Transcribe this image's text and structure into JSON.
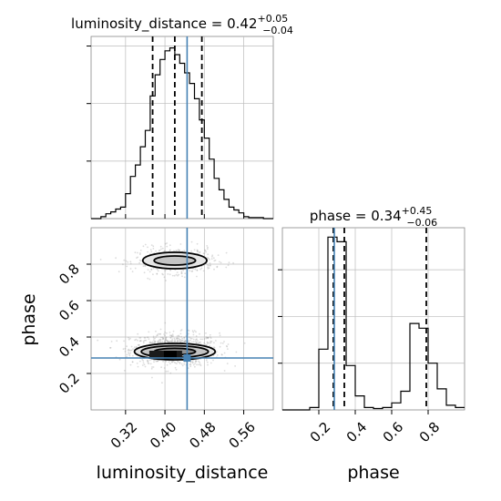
{
  "chart_data": {
    "type": "corner",
    "parameters": [
      "luminosity_distance",
      "phase"
    ],
    "truth": {
      "luminosity_distance": 0.445,
      "phase": 0.285
    },
    "panels": [
      {
        "id": "hist-luminosity-distance",
        "type": "histogram",
        "parameter": "luminosity_distance",
        "title": {
          "main": "luminosity_distance = 0.42",
          "sup": "+0.05",
          "sub": "−0.04"
        },
        "bin_edges": [
          0.25,
          0.26,
          0.27,
          0.28,
          0.29,
          0.3,
          0.31,
          0.32,
          0.33,
          0.34,
          0.35,
          0.36,
          0.37,
          0.38,
          0.39,
          0.4,
          0.41,
          0.42,
          0.43,
          0.44,
          0.45,
          0.46,
          0.47,
          0.48,
          0.49,
          0.5,
          0.51,
          0.52,
          0.53,
          0.54,
          0.55,
          0.56,
          0.57,
          0.58,
          0.59,
          0.6,
          0.61,
          0.62
        ],
        "counts": [
          0,
          0,
          2,
          5,
          7,
          10,
          12,
          26,
          44,
          56,
          75,
          92,
          128,
          150,
          166,
          175,
          178,
          171,
          162,
          152,
          141,
          125,
          103,
          84,
          62,
          42,
          30,
          20,
          12,
          9,
          6,
          2,
          1,
          1,
          1,
          0,
          0
        ],
        "quantiles": [
          0.375,
          0.42,
          0.475
        ],
        "xlim": [
          0.25,
          0.62
        ],
        "ylim": [
          0,
          190
        ],
        "ytick_values": [
          60,
          120,
          180
        ]
      },
      {
        "id": "hist-phase",
        "type": "histogram",
        "parameter": "phase",
        "title": {
          "main": "phase = 0.34",
          "sup": "+0.45",
          "sub": "−0.06"
        },
        "bin_edges": [
          0.0,
          0.05,
          0.1,
          0.15,
          0.2,
          0.25,
          0.3,
          0.35,
          0.4,
          0.45,
          0.5,
          0.55,
          0.6,
          0.65,
          0.7,
          0.75,
          0.8,
          0.85,
          0.9,
          0.95,
          1.0
        ],
        "counts": [
          0,
          0,
          0,
          5,
          130,
          370,
          360,
          95,
          30,
          5,
          3,
          5,
          15,
          40,
          185,
          175,
          100,
          45,
          10,
          5
        ],
        "quantiles": [
          0.28,
          0.34,
          0.79
        ],
        "xlim": [
          0.0,
          1.0
        ],
        "ylim": [
          0,
          390
        ],
        "ytick_values": [
          100,
          200,
          300
        ],
        "xticks": [
          "0.2",
          "0.4",
          "0.6",
          "0.8"
        ],
        "xtick_values": [
          0.2,
          0.4,
          0.6,
          0.8
        ],
        "xlabel": "phase"
      },
      {
        "id": "joint-luminosity-phase",
        "type": "2d-density",
        "x": "luminosity_distance",
        "y": "phase",
        "xlim": [
          0.25,
          0.62
        ],
        "ylim": [
          0.0,
          1.0
        ],
        "xticks": [
          "0.32",
          "0.40",
          "0.48",
          "0.56"
        ],
        "xtick_values": [
          0.32,
          0.4,
          0.48,
          0.56
        ],
        "yticks": [
          "0.2",
          "0.4",
          "0.6",
          "0.8"
        ],
        "ytick_values": [
          0.2,
          0.4,
          0.6,
          0.8
        ],
        "xlabel": "luminosity_distance",
        "ylabel": "phase",
        "modes": [
          {
            "center": [
              0.42,
              0.32
            ],
            "contours": [
              [
                0.082,
                0.045
              ],
              [
                0.068,
                0.032
              ],
              [
                0.042,
                0.018
              ]
            ]
          },
          {
            "center": [
              0.42,
              0.82
            ],
            "contours": [
              [
                0.065,
                0.045
              ],
              [
                0.042,
                0.025
              ]
            ]
          }
        ]
      }
    ],
    "grid": true
  }
}
